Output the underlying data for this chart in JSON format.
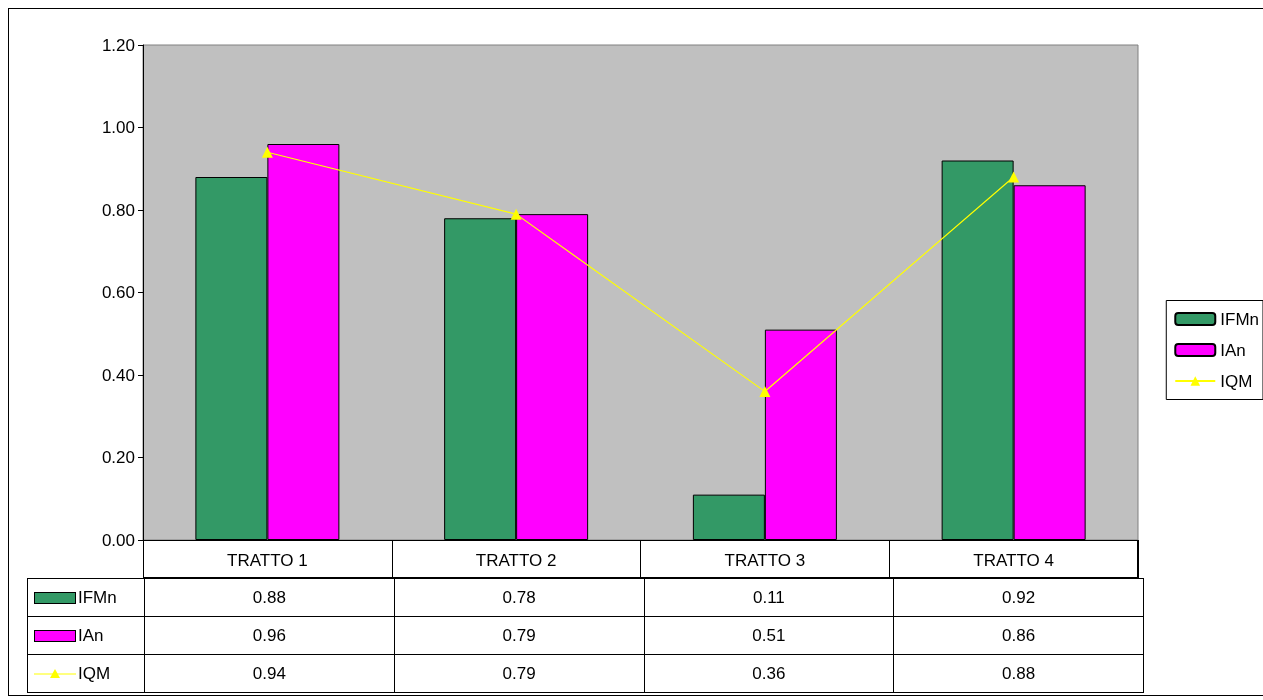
{
  "chart_data": {
    "type": "bar",
    "categories": [
      "TRATTO 1",
      "TRATTO 2",
      "TRATTO 3",
      "TRATTO 4"
    ],
    "series": [
      {
        "name": "IFMn",
        "color": "#339966",
        "values": [
          0.88,
          0.78,
          0.11,
          0.92
        ]
      },
      {
        "name": "IAn",
        "color": "#ff00ff",
        "values": [
          0.96,
          0.79,
          0.51,
          0.86
        ]
      },
      {
        "name": "IQM",
        "type": "line",
        "color": "#ffff00",
        "marker": "triangle",
        "values": [
          0.94,
          0.79,
          0.36,
          0.88
        ]
      }
    ],
    "ylim": [
      0,
      1.2
    ],
    "yticks": [
      {
        "value": 0,
        "label": "0.00"
      },
      {
        "value": 0.2,
        "label": "0.20"
      },
      {
        "value": 0.4,
        "label": "0.40"
      },
      {
        "value": 0.6,
        "label": "0.60"
      },
      {
        "value": 0.8,
        "label": "0.80"
      },
      {
        "value": 1,
        "label": "1.00"
      },
      {
        "value": 1.2,
        "label": "1.20"
      }
    ],
    "grid": false,
    "legend": "right",
    "data_labels": true
  }
}
